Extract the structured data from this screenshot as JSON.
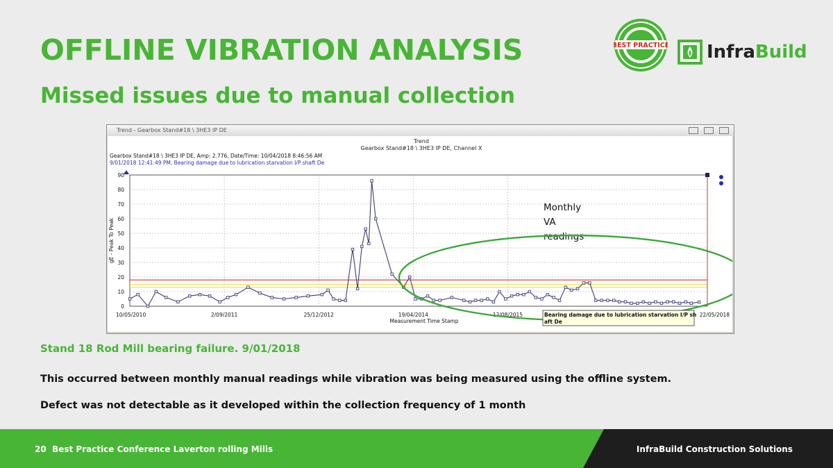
{
  "slide": {
    "title": "OFFLINE VIBRATION ANALYSIS",
    "subtitle": "Missed issues due to manual collection",
    "badge_text": "BEST PRACTICE",
    "logo_text_part1": "Infra",
    "logo_text_part2": "Build",
    "stand_heading": "Stand 18 Rod Mill bearing failure. 9/01/2018",
    "line1": "This occurred between monthly manual readings while vibration was being measured using the offline system.",
    "line2": "Defect was not detectable as it developed within the collection frequency of 1 month",
    "footer_page": "20",
    "footer_left": "Best Practice Conference Laverton rolling Mills",
    "footer_right": "InfraBuild Construction Solutions",
    "colors": {
      "accent_green": "#48b536",
      "footer_dark": "#1e1e1e"
    }
  },
  "window": {
    "title": "Trend - Gearbox Stand#18 \\ 3HE3 IP DE"
  },
  "chart_data": {
    "type": "line",
    "title": "Trend",
    "subtitle": "Gearbox Stand#18 \\ 3HE3 IP DE, Channel X",
    "info_line1": "Gearbox Stand#18 \\ 3HE3 IP DE, Amp: 2.776, Date/Time: 10/04/2018 8:46:56 AM",
    "info_line2": "9/01/2018 12:41:49 PM, Bearing damage due to lubrication starvation I/P shaft De",
    "ylabel": "gE - Peak To Peak",
    "xlabel": "Measurement Time Stamp",
    "ylim": [
      0,
      90
    ],
    "yticks": [
      "0",
      "10",
      "20",
      "30",
      "40",
      "50",
      "60",
      "70",
      "80",
      "90"
    ],
    "xlim": [
      "10/05/2010",
      "22/05/2018"
    ],
    "xticks": [
      "10/05/2010",
      "2/09/2011",
      "25/12/2012",
      "19/04/2014",
      "12/08/2015",
      "22/05/2018"
    ],
    "alarm_levels": [
      {
        "value": 18,
        "color": "#e03030"
      },
      {
        "value": 15,
        "color": "#f0e050"
      },
      {
        "value": 13,
        "color": "#f0e050"
      }
    ],
    "series": [
      {
        "color": "#3c3c70",
        "x": [
          "2010-05-10",
          "2010-06-20",
          "2010-08-10",
          "2010-09-20",
          "2010-11-10",
          "2011-01-10",
          "2011-03-10",
          "2011-05-01",
          "2011-06-20",
          "2011-08-10",
          "2011-09-20",
          "2011-11-01",
          "2012-01-01",
          "2012-03-01",
          "2012-05-01",
          "2012-07-01",
          "2012-09-01",
          "2012-11-01",
          "2013-01-10",
          "2013-02-10",
          "2013-03-10",
          "2013-04-10",
          "2013-05-10",
          "2013-06-15",
          "2013-07-10",
          "2013-08-01",
          "2013-08-20",
          "2013-09-05",
          "2013-09-20",
          "2013-10-10",
          "2014-01-01",
          "2014-03-01",
          "2014-04-01",
          "2014-05-01",
          "2014-06-01",
          "2014-07-01",
          "2014-08-01",
          "2014-09-01",
          "2014-11-01",
          "2015-01-01",
          "2015-02-01",
          "2015-03-01",
          "2015-04-01",
          "2015-05-01",
          "2015-06-01",
          "2015-07-01",
          "2015-08-01",
          "2015-09-01",
          "2015-10-01",
          "2015-11-01",
          "2015-12-01",
          "2016-01-01",
          "2016-02-01",
          "2016-03-01",
          "2016-04-01",
          "2016-05-01",
          "2016-06-01",
          "2016-07-01",
          "2016-08-01",
          "2016-09-01",
          "2016-10-01",
          "2016-11-01",
          "2016-12-01",
          "2017-01-01",
          "2017-02-01",
          "2017-03-01",
          "2017-04-01",
          "2017-05-01",
          "2017-06-01",
          "2017-07-01",
          "2017-08-01",
          "2017-09-01",
          "2017-10-01",
          "2017-11-01",
          "2017-12-01",
          "2018-01-01",
          "2018-02-01",
          "2018-03-01",
          "2018-04-10"
        ],
        "values": [
          5,
          8,
          0,
          10,
          6,
          3,
          7,
          8,
          7,
          3,
          6,
          8,
          13,
          9,
          6,
          5,
          6,
          7,
          8,
          11,
          5,
          4,
          4,
          39,
          12,
          41,
          53,
          43,
          86,
          60,
          22,
          13,
          20,
          5,
          5,
          7,
          4,
          4,
          6,
          4,
          3,
          4,
          4,
          5,
          3,
          10,
          5,
          7,
          8,
          8,
          10,
          6,
          5,
          8,
          6,
          4,
          13,
          11,
          12,
          16,
          16,
          4,
          4,
          4,
          4,
          3,
          3,
          2,
          2,
          3,
          2,
          3,
          2,
          3,
          3,
          2,
          3,
          2,
          2.8
        ]
      }
    ],
    "annotations": [
      "Monthly",
      "VA",
      "readings",
      "Bearing damage due to lubrication starvation I/P sh",
      "aft De"
    ]
  }
}
